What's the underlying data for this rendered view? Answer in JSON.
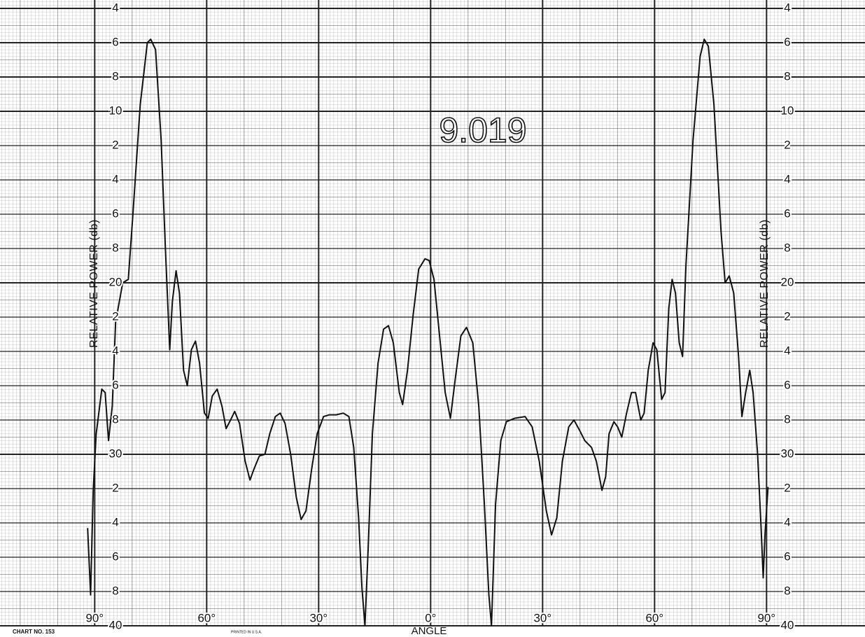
{
  "chart_data": {
    "type": "line",
    "annotation": "9.019",
    "y_label": "RELATIVE POWER (db)",
    "x_label": "ANGLE",
    "chart_number": "CHART NO. 153",
    "printer_note": "PRINTED IN U.S.A.",
    "color": "#111111",
    "grid": true,
    "ylim": [
      40,
      4
    ],
    "yticks": [
      4,
      6,
      8,
      10,
      {
        "value": 12,
        "label": "2"
      },
      {
        "value": 14,
        "label": "4"
      },
      {
        "value": 16,
        "label": "6"
      },
      {
        "value": 18,
        "label": "8"
      },
      20,
      {
        "value": 22,
        "label": "2"
      },
      {
        "value": 24,
        "label": "4"
      },
      {
        "value": 26,
        "label": "6"
      },
      {
        "value": 28,
        "label": "8"
      },
      30,
      {
        "value": 32,
        "label": "2"
      },
      {
        "value": 34,
        "label": "4"
      },
      {
        "value": 36,
        "label": "6"
      },
      {
        "value": 38,
        "label": "8"
      },
      40
    ],
    "xlim": [
      -115,
      116
    ],
    "xticks": [
      {
        "value": -90,
        "label": "90°"
      },
      {
        "value": -60,
        "label": "60°"
      },
      {
        "value": -30,
        "label": "30°"
      },
      {
        "value": 0,
        "label": "0°"
      },
      {
        "value": 30,
        "label": "30°"
      },
      {
        "value": 60,
        "label": "60°"
      },
      {
        "value": 90,
        "label": "90°"
      }
    ],
    "x": [
      -91.9,
      -91.1,
      -90.4,
      -89.6,
      -88.1,
      -87.2,
      -86.3,
      -85.3,
      -84.4,
      -82.5,
      -81.0,
      -79.7,
      -77.8,
      -75.9,
      -75.0,
      -73.7,
      -72.2,
      -71.1,
      -69.9,
      -69.2,
      -68.2,
      -67.3,
      -66.2,
      -65.2,
      -64.1,
      -63.0,
      -61.9,
      -60.6,
      -59.6,
      -58.5,
      -57.2,
      -55.9,
      -54.8,
      -53.6,
      -52.5,
      -51.2,
      -49.7,
      -48.4,
      -47.4,
      -45.9,
      -44.4,
      -43.1,
      -41.6,
      -40.3,
      -39.0,
      -37.5,
      -36.0,
      -34.7,
      -33.4,
      -31.9,
      -30.4,
      -28.7,
      -27.2,
      -25.3,
      -23.4,
      -21.9,
      -20.6,
      -19.3,
      -18.4,
      -17.6,
      -16.7,
      -15.6,
      -14.1,
      -12.6,
      -11.3,
      -10.0,
      -8.4,
      -7.5,
      -6.2,
      -4.7,
      -3.2,
      -1.5,
      -0.4,
      0.9,
      2.4,
      3.9,
      5.3,
      6.6,
      8.1,
      9.6,
      11.3,
      12.9,
      14.4,
      15.6,
      16.3,
      17.4,
      18.8,
      20.3,
      22.5,
      25.3,
      27.2,
      29.1,
      31.0,
      32.4,
      33.8,
      35.3,
      37.0,
      38.4,
      39.9,
      41.3,
      43.1,
      44.4,
      45.9,
      46.9,
      47.8,
      49.1,
      50.1,
      51.2,
      52.5,
      53.8,
      54.9,
      56.3,
      57.2,
      58.3,
      59.6,
      60.6,
      61.9,
      62.8,
      63.8,
      64.7,
      65.6,
      66.6,
      67.5,
      68.4,
      70.3,
      72.2,
      73.3,
      74.4,
      75.9,
      77.8,
      78.9,
      80.0,
      81.2,
      82.5,
      83.4,
      84.4,
      85.5,
      86.4,
      87.6,
      88.5,
      89.1,
      89.6,
      90.4
    ],
    "values": [
      34.3,
      38.2,
      32.1,
      28.8,
      26.2,
      26.4,
      29.2,
      27.2,
      22.3,
      20.0,
      19.8,
      15.8,
      9.6,
      6.0,
      5.8,
      6.4,
      11.7,
      17.8,
      23.9,
      21.1,
      19.3,
      20.6,
      25.1,
      26.0,
      23.9,
      23.4,
      24.7,
      27.6,
      27.9,
      26.6,
      26.2,
      27.2,
      28.5,
      28.0,
      27.5,
      28.2,
      30.4,
      31.5,
      30.9,
      30.1,
      30.0,
      28.8,
      27.8,
      27.6,
      28.2,
      30.0,
      32.5,
      33.8,
      33.3,
      30.9,
      28.8,
      27.8,
      27.7,
      27.7,
      27.6,
      27.8,
      29.6,
      33.7,
      37.8,
      40,
      35.3,
      28.8,
      24.7,
      22.7,
      22.5,
      23.5,
      26.4,
      27.1,
      25.1,
      21.9,
      19.2,
      18.6,
      18.7,
      19.8,
      23.1,
      26.4,
      27.9,
      25.6,
      23.1,
      22.6,
      23.5,
      27.2,
      32.9,
      38.2,
      40,
      32.9,
      29.2,
      28.1,
      27.9,
      27.8,
      28.4,
      30.4,
      33.3,
      34.7,
      33.7,
      30.4,
      28.4,
      28.0,
      28.6,
      29.2,
      29.6,
      30.4,
      32.1,
      31.3,
      28.8,
      28.1,
      28.4,
      29.0,
      27.6,
      26.4,
      26.4,
      28.0,
      27.6,
      25.1,
      23.5,
      23.9,
      26.8,
      26.4,
      21.5,
      19.8,
      20.6,
      23.5,
      24.3,
      19.0,
      11.7,
      6.8,
      5.8,
      6.2,
      9.6,
      17.0,
      20.0,
      19.6,
      20.6,
      24.3,
      27.8,
      26.4,
      25.1,
      26.4,
      30.0,
      34.1,
      37.2,
      34.6,
      31.9
    ]
  }
}
